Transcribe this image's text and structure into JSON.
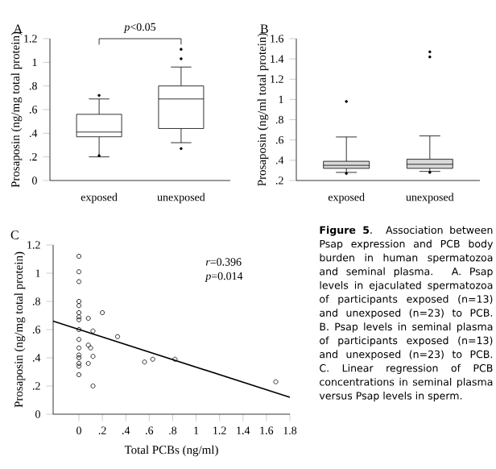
{
  "chart_data": [
    {
      "type": "box",
      "title": "A",
      "ylabel": "Prosaposin (ng/mg total protein)",
      "categories": [
        "exposed",
        "unexposed"
      ],
      "ylim": [
        0,
        1.2
      ],
      "yticks": [
        0,
        {
          "value": 0.2,
          "label": ".2"
        },
        {
          "value": 0.4,
          "label": ".4"
        },
        {
          "value": 0.6,
          "label": ".6"
        },
        {
          "value": 0.8,
          "label": ".8"
        },
        1,
        1.2
      ],
      "annotations": [
        "*p*<0.05"
      ],
      "series": [
        {
          "color": "#ffffff",
          "boxes": [
            {
              "low": 0.2,
              "q1": 0.37,
              "median": 0.41,
              "q3": 0.56,
              "high": 0.69,
              "outliers": [
                0.72,
                0.21
              ]
            },
            {
              "low": 0.32,
              "q1": 0.44,
              "median": 0.69,
              "q3": 0.8,
              "high": 0.96,
              "outliers": [
                1.11,
                1.03,
                0.27
              ]
            }
          ]
        }
      ]
    },
    {
      "type": "box",
      "title": "B",
      "ylabel": "Prosaposin (ng/ml total protein)",
      "categories": [
        "exposed",
        "unexposed"
      ],
      "ylim": [
        0.2,
        1.6
      ],
      "yticks": [
        {
          "value": 0.2,
          "label": ".2"
        },
        {
          "value": 0.4,
          "label": ".4"
        },
        {
          "value": 0.6,
          "label": ".6"
        },
        {
          "value": 0.8,
          "label": ".8"
        },
        1,
        1.2,
        1.4,
        1.6
      ],
      "series": [
        {
          "color": "#d9d9d9",
          "boxes": [
            {
              "low": 0.28,
              "q1": 0.32,
              "median": 0.35,
              "q3": 0.39,
              "high": 0.63,
              "outliers": [
                0.98,
                0.27
              ]
            },
            {
              "low": 0.29,
              "q1": 0.32,
              "median": 0.36,
              "q3": 0.41,
              "high": 0.64,
              "outliers": [
                1.47,
                1.42,
                0.28
              ]
            }
          ]
        }
      ]
    },
    {
      "type": "scatter",
      "title": "C",
      "xlabel": "Total PCBs (ng/ml)",
      "ylabel": "Prosaposin (ng/mg total protein)",
      "xlim": [
        -0.22,
        1.8
      ],
      "ylim": [
        0,
        1.2
      ],
      "xticks": [
        0,
        {
          "value": 0.2,
          "label": ".2"
        },
        {
          "value": 0.4,
          "label": ".4"
        },
        {
          "value": 0.6,
          "label": ".6"
        },
        {
          "value": 0.8,
          "label": ".8"
        },
        1,
        1.2,
        1.4,
        1.6,
        1.8
      ],
      "yticks": [
        0,
        {
          "value": 0.2,
          "label": ".2"
        },
        {
          "value": 0.4,
          "label": ".4"
        },
        {
          "value": 0.6,
          "label": ".6"
        },
        {
          "value": 0.8,
          "label": ".8"
        },
        1,
        1.2
      ],
      "annotations": [
        "*r*=0.396",
        "*p*=0.014"
      ],
      "series": [
        {
          "type": "scatter",
          "marker": "circle",
          "color": "#000000",
          "x": [
            0,
            0,
            0,
            0,
            0,
            0,
            0,
            0,
            0,
            0,
            0,
            0,
            0,
            0,
            0,
            0,
            0.08,
            0.08,
            0.1,
            0.08,
            0.12,
            0.12,
            0.12,
            0.2,
            0.33,
            0.56,
            0.63,
            0.82,
            1.68
          ],
          "values": [
            1.12,
            1.01,
            0.94,
            0.8,
            0.77,
            0.72,
            0.69,
            0.67,
            0.6,
            0.53,
            0.47,
            0.42,
            0.4,
            0.36,
            0.34,
            0.28,
            0.68,
            0.49,
            0.47,
            0.36,
            0.59,
            0.41,
            0.2,
            0.72,
            0.55,
            0.37,
            0.39,
            0.39,
            0.23
          ]
        },
        {
          "type": "line",
          "marker": "none",
          "color": "#000000",
          "x": [
            -0.22,
            1.8
          ],
          "values": [
            0.66,
            0.12
          ]
        }
      ]
    },
    {
      "type": "other",
      "annotations": [
        "**Figure 5**. Association between Psap expression and PCB body burden in human spermatozoa and seminal plasma. A. Psap levels in ejaculated spermatozoa of participants exposed (n=13) and unexposed (n=23) to PCB. B. Psap levels in seminal plasma of participants exposed (n=13) and unexposed (n=23) to PCB. C. Linear regression of PCB concentrations in seminal plasma versus Psap levels in sperm."
      ]
    }
  ]
}
